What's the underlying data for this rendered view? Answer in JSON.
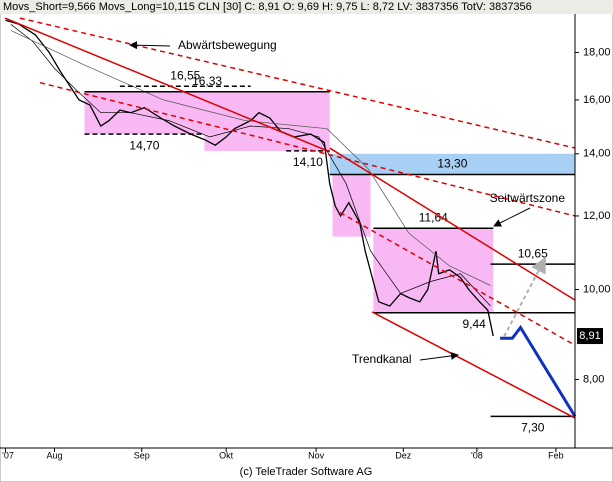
{
  "chart_data": {
    "type": "line",
    "log_y": true,
    "header_info": "CLN [30] C: 8,91 O: 9,69 H: 9,75 L: 8,72 LV: 3837356 TotV: 3837356",
    "footer": "(c) TeleTrader Software AG",
    "notes": [
      "Abwärtsbewegung",
      "Seitwärtszone",
      "Trendkanal"
    ],
    "xlim": [
      0,
      211
    ],
    "ylim": [
      6.75,
      19.8
    ],
    "xticks": [
      {
        "value": 2,
        "label": "'07"
      },
      {
        "value": 20,
        "label": "Aug"
      },
      {
        "value": 52,
        "label": "Sep"
      },
      {
        "value": 83,
        "label": "Okt"
      },
      {
        "value": 116,
        "label": "Nov"
      },
      {
        "value": 148,
        "label": "Dez"
      },
      {
        "value": 175,
        "label": "'08"
      },
      {
        "value": 204,
        "label": "Feb"
      }
    ],
    "yticks": [
      {
        "value": 8,
        "label": "8,00"
      },
      {
        "value": 10,
        "label": "10,00"
      },
      {
        "value": 12,
        "label": "12,00"
      },
      {
        "value": 14,
        "label": "14,00"
      },
      {
        "value": 16,
        "label": "16,00"
      },
      {
        "value": 18,
        "label": "18,00"
      }
    ],
    "series": [
      {
        "color": "#000000",
        "width": 1.3,
        "x": [
          2,
          7,
          13,
          18,
          22,
          26,
          29,
          33,
          37,
          40,
          44,
          48,
          53,
          59,
          64,
          70,
          75,
          79,
          83,
          86,
          92,
          95,
          99,
          103,
          108,
          114,
          119,
          121,
          123,
          125,
          128,
          132,
          134,
          137,
          139,
          143,
          147,
          150,
          154,
          157,
          160,
          161,
          165,
          169,
          172,
          176,
          179,
          181
        ],
        "values": [
          19.5,
          19.3,
          18.8,
          18.0,
          17.2,
          16.5,
          16.0,
          15.8,
          15.0,
          15.2,
          15.6,
          15.5,
          15.7,
          15.3,
          15.0,
          14.7,
          14.5,
          14.3,
          14.6,
          14.9,
          15.2,
          15.5,
          15.3,
          14.8,
          14.6,
          14.7,
          14.4,
          13.0,
          12.3,
          12.0,
          12.4,
          11.8,
          11.0,
          10.2,
          9.7,
          9.6,
          9.9,
          9.8,
          9.7,
          10.0,
          11.0,
          10.4,
          10.5,
          10.3,
          10.0,
          9.7,
          9.5,
          8.91
        ]
      },
      {
        "name": "Movs_Short=9,566",
        "color": "#000000",
        "width": 0.7,
        "x": [
          4,
          12,
          20,
          28,
          37,
          48,
          62,
          77,
          92,
          106,
          117,
          127,
          136,
          147,
          158,
          169,
          180
        ],
        "values": [
          19.3,
          18.5,
          17.3,
          16.4,
          15.5,
          15.5,
          15.2,
          14.6,
          15.0,
          14.9,
          14.6,
          13.0,
          11.0,
          9.9,
          10.2,
          10.4,
          9.6
        ]
      },
      {
        "name": "Movs_Long=10,115",
        "color": "#555555",
        "width": 0.7,
        "x": [
          4,
          30,
          60,
          90,
          120,
          135,
          150,
          165,
          180
        ],
        "values": [
          19.0,
          17.5,
          16.0,
          15.2,
          14.9,
          13.5,
          11.5,
          10.6,
          10.1
        ]
      }
    ],
    "zone_color": "#f8b8f4",
    "zones": [
      {
        "x": [
          31,
          121
        ],
        "y": [
          14.7,
          16.33
        ]
      },
      {
        "x": [
          75,
          121
        ],
        "y": [
          14.1,
          14.7
        ]
      },
      {
        "x": [
          122,
          136
        ],
        "y": [
          11.4,
          13.3
        ]
      },
      {
        "x": [
          137,
          181
        ],
        "y": [
          9.44,
          11.64
        ]
      }
    ],
    "band": {
      "x": [
        121,
        211
      ],
      "y": [
        13.3,
        14.0
      ],
      "color": "#a8d0f4"
    },
    "levels": [
      {
        "value": 16.55,
        "label": "16,55",
        "x": [
          44,
          92
        ],
        "dashed": true,
        "label_pos": "above"
      },
      {
        "value": 16.33,
        "label": "16,33",
        "x": [
          31,
          121
        ],
        "dashed": false,
        "label_pos": "above"
      },
      {
        "value": 14.7,
        "label": "14,70",
        "x": [
          31,
          75
        ],
        "dashed": true,
        "label_pos": "below"
      },
      {
        "value": 14.1,
        "label": "14,10",
        "x": [
          105,
          121
        ],
        "dashed": true,
        "label_pos": "below"
      },
      {
        "value": 13.3,
        "label": "13,30",
        "x": [
          121,
          211
        ],
        "dashed": false,
        "label_pos": "above"
      },
      {
        "value": 11.64,
        "label": "11,64",
        "x": [
          137,
          181
        ],
        "dashed": false,
        "label_pos": "above"
      },
      {
        "value": 10.65,
        "label": "10,65",
        "x": [
          180,
          211
        ],
        "dashed": false,
        "label_pos": "above"
      },
      {
        "value": 9.44,
        "label": "9,44",
        "x": [
          137,
          211
        ],
        "dashed": false,
        "label_pos": "below"
      },
      {
        "value": 7.3,
        "label": "7,30",
        "x": [
          180,
          211
        ],
        "dashed": false,
        "label_pos": "below"
      }
    ],
    "trend_color": "#e00000",
    "trendlines": [
      {
        "x": [
          1.8,
          121
        ],
        "y": [
          19.6,
          14.07
        ],
        "dashed": false
      },
      {
        "x": [
          121,
          211
        ],
        "y": [
          14.2,
          9.74
        ],
        "dashed": false
      },
      {
        "x": [
          136.5,
          211
        ],
        "y": [
          9.46,
          7.27
        ],
        "dashed": false
      },
      {
        "x": [
          7.3,
          211
        ],
        "y": [
          19.6,
          14.2
        ],
        "dashed": true
      },
      {
        "x": [
          14.7,
          211
        ],
        "y": [
          16.7,
          12.0
        ],
        "dashed": true
      },
      {
        "x": [
          124.8,
          211
        ],
        "y": [
          12.1,
          8.71
        ],
        "dashed": true
      }
    ],
    "forecast": {
      "x": [
        183.5,
        188,
        191,
        211
      ],
      "y": [
        8.86,
        8.86,
        9.1,
        7.3
      ],
      "color": "#1030c0"
    },
    "projection": {
      "x": [
        185,
        200
      ],
      "y": [
        8.9,
        10.8
      ],
      "color": "#b0b0b0"
    },
    "last_price": {
      "value": 8.91,
      "label": "8,91"
    }
  }
}
